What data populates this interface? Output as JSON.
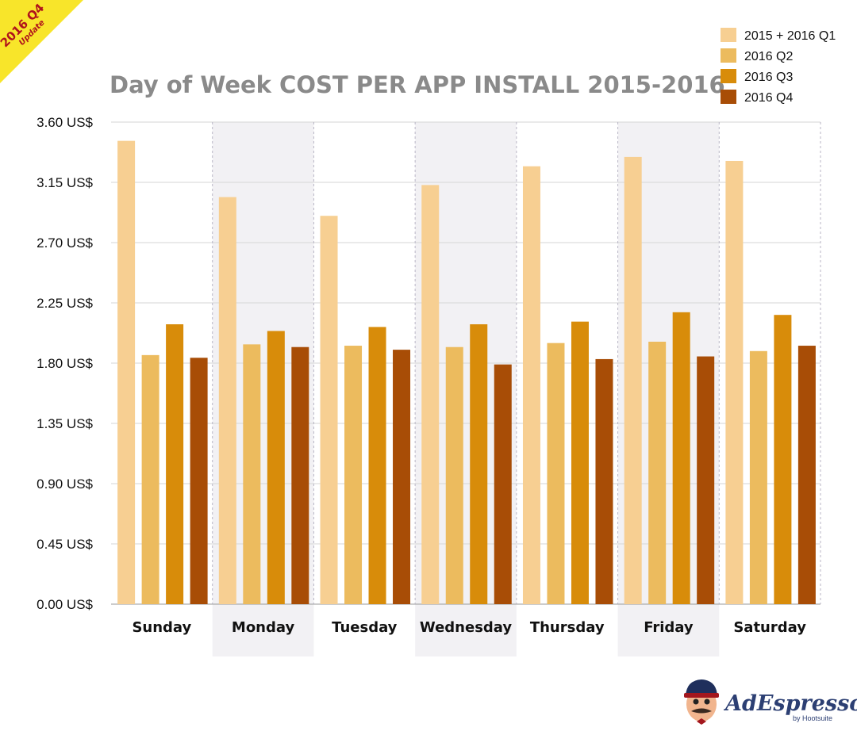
{
  "badge": {
    "line1": "2016 Q4",
    "line2": "Update"
  },
  "brand": {
    "name": "AdEspresso",
    "byline": "by Hootsuite"
  },
  "chart_data": {
    "type": "bar",
    "title": "Day of Week COST PER APP INSTALL 2015-2016",
    "xlabel": "",
    "ylabel": "",
    "ylim": [
      0,
      3.6
    ],
    "yticks": [
      "0.00 US$",
      "0.45 US$",
      "0.90 US$",
      "1.35 US$",
      "1.80 US$",
      "2.25 US$",
      "2.70 US$",
      "3.15 US$",
      "3.60 US$"
    ],
    "grid": true,
    "legend_position": "top-right",
    "categories": [
      "Sunday",
      "Monday",
      "Tuesday",
      "Wednesday",
      "Thursday",
      "Friday",
      "Saturday"
    ],
    "series": [
      {
        "name": "2015 + 2016 Q1",
        "color": "#f7cf92",
        "values": [
          3.46,
          3.04,
          2.9,
          3.13,
          3.27,
          3.34,
          3.31
        ]
      },
      {
        "name": "2016 Q2",
        "color": "#ecbb5e",
        "values": [
          1.86,
          1.94,
          1.93,
          1.92,
          1.95,
          1.96,
          1.89
        ]
      },
      {
        "name": "2016 Q3",
        "color": "#d88c0a",
        "values": [
          2.09,
          2.04,
          2.07,
          2.09,
          2.11,
          2.18,
          2.16
        ]
      },
      {
        "name": "2016 Q4",
        "color": "#a84d06",
        "values": [
          1.84,
          1.92,
          1.9,
          1.79,
          1.83,
          1.85,
          1.93
        ]
      }
    ],
    "shaded_categories": [
      "Monday",
      "Wednesday",
      "Friday"
    ]
  }
}
